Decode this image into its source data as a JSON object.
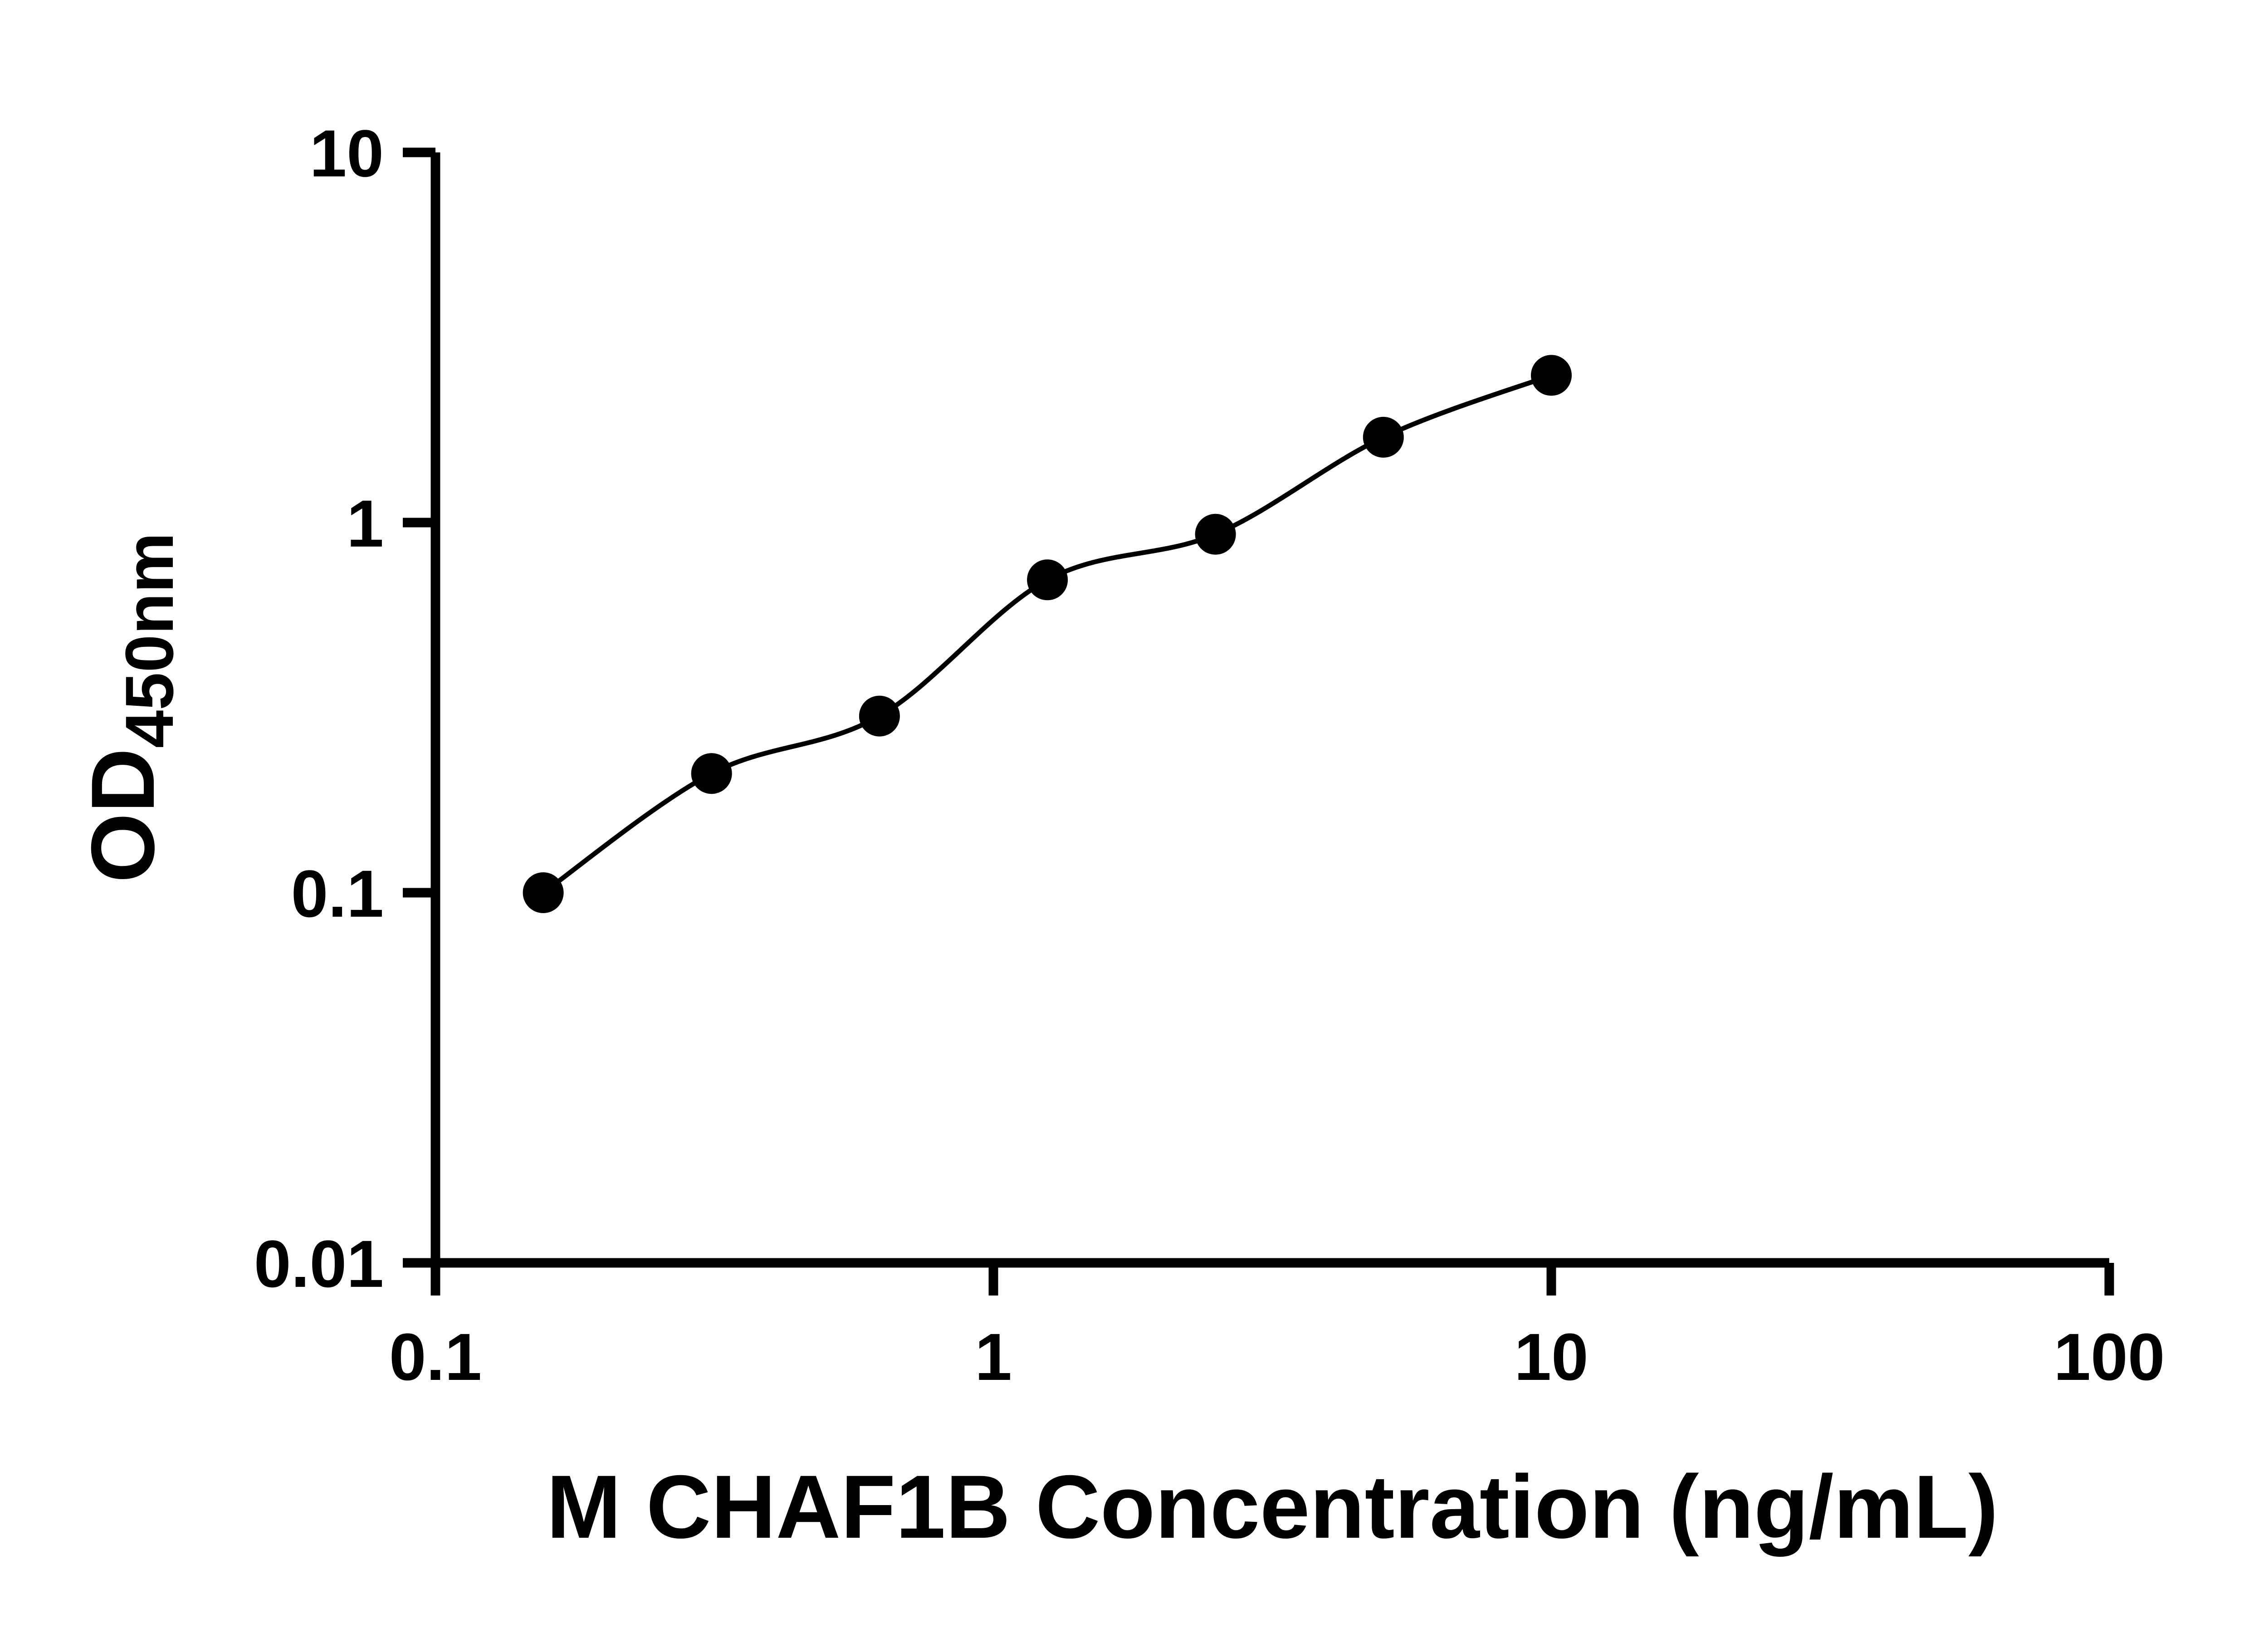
{
  "chart_data": {
    "type": "scatter",
    "title": "",
    "xlabel": "M CHAF1B Concentration (ng/mL)",
    "ylabel_main": "OD",
    "ylabel_sub": "450nm",
    "x_scale": "log",
    "y_scale": "log",
    "xlim": [
      0.1,
      100
    ],
    "ylim": [
      0.01,
      10
    ],
    "x_ticks": [
      0.1,
      1,
      10,
      100
    ],
    "x_tick_labels": [
      "0.1",
      "1",
      "10",
      "100"
    ],
    "y_ticks": [
      0.01,
      0.1,
      1,
      10
    ],
    "y_tick_labels": [
      "0.01",
      "0.1",
      "1",
      "10"
    ],
    "x": [
      0.156,
      0.3125,
      0.625,
      1.25,
      2.5,
      5,
      10
    ],
    "y": [
      0.1,
      0.21,
      0.3,
      0.7,
      0.93,
      1.7,
      2.5
    ],
    "grid": false,
    "legend": "none",
    "curve": "smooth-fit-through-points",
    "marker_shape": "circle",
    "marker_color": "#000000",
    "line_color": "#000000",
    "axis_color": "#000000",
    "background": "#ffffff"
  }
}
